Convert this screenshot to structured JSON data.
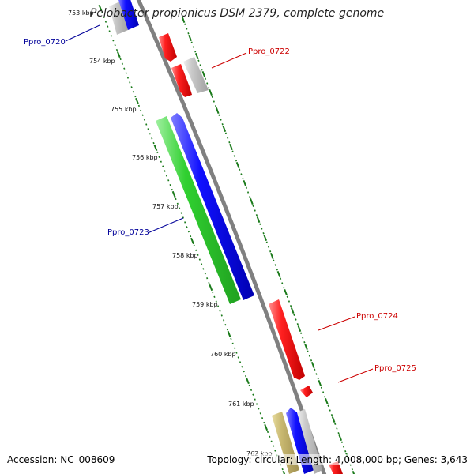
{
  "title": "Pelobacter propionicus DSM 2379, complete genome",
  "footer": {
    "accession": "Accession: NC_008609",
    "summary": "Topology: circular; Length: 4,008,000 bp; Genes: 3,643"
  },
  "colors": {
    "backbone": "#808080",
    "ruler": "#1a7a1a",
    "cds_red": "#e00000",
    "cds_blue": "#0000e0",
    "cds_green": "#20c020",
    "cds_gray": "#b0b0b0",
    "cds_khaki": "#c0b070",
    "label_blue": "#000099",
    "label_red": "#cc0000"
  },
  "ticks": [
    {
      "label": "753 kbp"
    },
    {
      "label": "754 kbp"
    },
    {
      "label": "755 kbp"
    },
    {
      "label": "756 kbp"
    },
    {
      "label": "757 kbp"
    },
    {
      "label": "758 kbp"
    },
    {
      "label": "759 kbp"
    },
    {
      "label": "760 kbp"
    },
    {
      "label": "761 kbp"
    },
    {
      "label": "762 kbp"
    }
  ],
  "gene_labels": [
    {
      "name": "Ppro_0720",
      "color": "blue"
    },
    {
      "name": "Ppro_0722",
      "color": "red"
    },
    {
      "name": "Ppro_0723",
      "color": "blue"
    },
    {
      "name": "Ppro_0724",
      "color": "red"
    },
    {
      "name": "Ppro_0725",
      "color": "red"
    }
  ]
}
